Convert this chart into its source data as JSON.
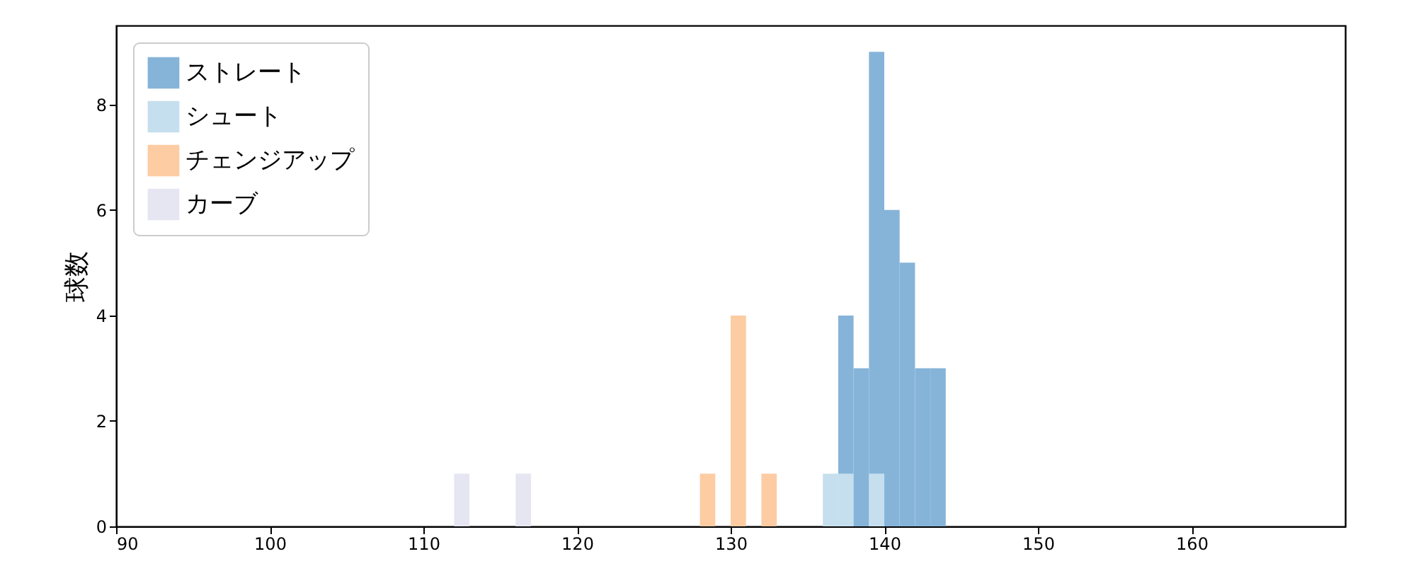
{
  "chart_data": {
    "type": "histogram",
    "ylabel": "球数",
    "bins": [
      112,
      113,
      114,
      115,
      116,
      117,
      118,
      119,
      120,
      121,
      122,
      123,
      124,
      125,
      126,
      127,
      128,
      129,
      130,
      131,
      132,
      133,
      134,
      135,
      136,
      137,
      138,
      139,
      140,
      141,
      142,
      143,
      144
    ],
    "series": [
      {
        "name": "ストレート",
        "color": "#86b4d9",
        "values": [
          0,
          0,
          0,
          0,
          0,
          0,
          0,
          0,
          0,
          0,
          0,
          0,
          0,
          0,
          0,
          0,
          0,
          0,
          0,
          0,
          0,
          0,
          0,
          0,
          0,
          4,
          3,
          9,
          6,
          5,
          3,
          3
        ]
      },
      {
        "name": "シュート",
        "color": "#c6dfee",
        "values": [
          0,
          0,
          0,
          0,
          0,
          0,
          0,
          0,
          0,
          0,
          0,
          0,
          0,
          0,
          0,
          0,
          0,
          0,
          0,
          0,
          0,
          0,
          0,
          0,
          1,
          1,
          0,
          1,
          0,
          0,
          0,
          0
        ]
      },
      {
        "name": "チェンジアップ",
        "color": "#fdcca3",
        "values": [
          0,
          0,
          0,
          0,
          0,
          0,
          0,
          0,
          0,
          0,
          0,
          0,
          0,
          0,
          0,
          0,
          1,
          0,
          4,
          0,
          1,
          0,
          0,
          0,
          0,
          0,
          0,
          0,
          0,
          0,
          0,
          0
        ]
      },
      {
        "name": "カーブ",
        "color": "#e6e6f2",
        "values": [
          1,
          0,
          0,
          0,
          1,
          0,
          0,
          0,
          0,
          0,
          0,
          0,
          0,
          0,
          0,
          0,
          0,
          0,
          0,
          0,
          0,
          0,
          0,
          0,
          0,
          0,
          0,
          0,
          0,
          0,
          0,
          0
        ]
      }
    ],
    "xlim": [
      90,
      170
    ],
    "xticks": [
      90,
      100,
      110,
      120,
      130,
      140,
      150,
      160
    ],
    "ylim": [
      0,
      9.5
    ],
    "yticks": [
      0,
      2,
      4,
      6,
      8
    ],
    "legend": "top left",
    "grid": false
  }
}
